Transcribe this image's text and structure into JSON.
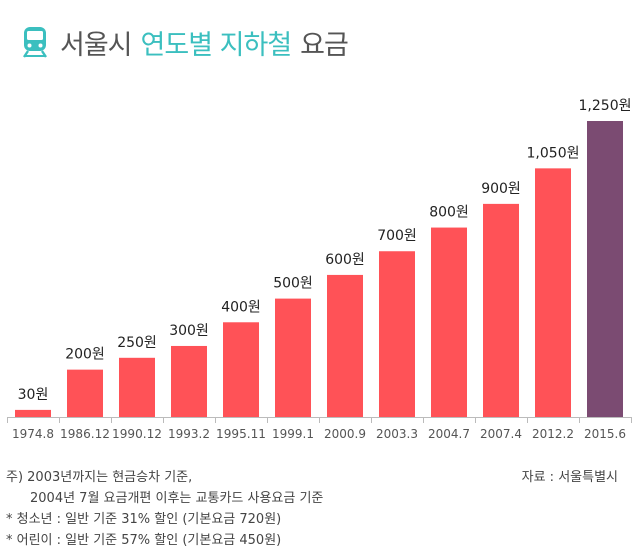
{
  "header": {
    "title_part1": "서울시",
    "title_part2": "연도별 지하철",
    "title_part3": "요금",
    "icon": "subway-train-icon",
    "accent_color": "#3bbfbf"
  },
  "chart_data": {
    "type": "bar",
    "title": "서울시 연도별 지하철 요금",
    "xlabel": "",
    "ylabel": "",
    "unit": "원",
    "ylim": [
      0,
      1250
    ],
    "grid": false,
    "categories": [
      "1974.8",
      "1986.12",
      "1990.12",
      "1993.2",
      "1995.11",
      "1999.1",
      "2000.9",
      "2003.3",
      "2004.7",
      "2007.4",
      "2012.2",
      "2015.6"
    ],
    "values": [
      30,
      200,
      250,
      300,
      400,
      500,
      600,
      700,
      800,
      900,
      1050,
      1250
    ],
    "value_labels": [
      "30원",
      "200원",
      "250원",
      "300원",
      "400원",
      "500원",
      "600원",
      "700원",
      "800원",
      "900원",
      "1,050원",
      "1,250원"
    ],
    "colors": [
      "#ff5257",
      "#ff5257",
      "#ff5257",
      "#ff5257",
      "#ff5257",
      "#ff5257",
      "#ff5257",
      "#ff5257",
      "#ff5257",
      "#ff5257",
      "#ff5257",
      "#7b4b72"
    ]
  },
  "footer": {
    "note1": "주) 2003년까지는 현금승차 기준,",
    "note2": "2004년 7월 요금개편 이후는 교통카드 사용요금 기준",
    "note3": "* 청소년 : 일반 기준 31% 할인 (기본요금 720원)",
    "note4": "* 어린이 : 일반 기준 57% 할인 (기본요금 450원)",
    "source": "자료 : 서울특별시"
  }
}
